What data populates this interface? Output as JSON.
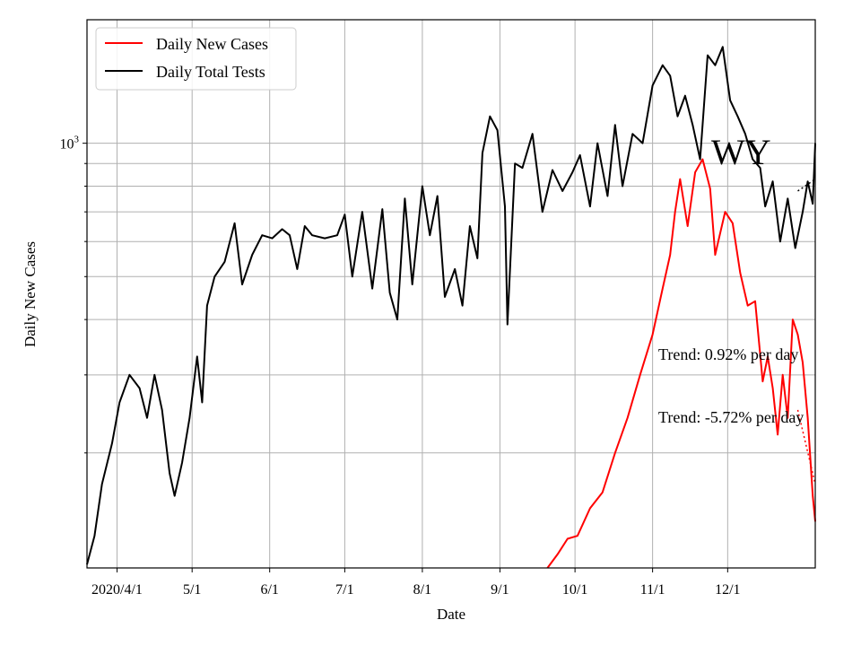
{
  "chart_data": {
    "type": "line",
    "state_label": "WY",
    "xlabel": "Date",
    "ylabel": "Daily New Cases",
    "x_range": [
      "2020-03-20",
      "2021-01-05"
    ],
    "y_scale": "log",
    "y_range": [
      110,
      1900
    ],
    "y_tick_labels": [
      {
        "value": 1000,
        "base": "10",
        "exp": "3"
      }
    ],
    "y_minor_ticks": [
      200,
      300,
      400,
      500,
      600,
      700,
      800,
      900
    ],
    "x_ticks": [
      {
        "date": "2020-04-01",
        "label": "2020/4/1"
      },
      {
        "date": "2020-05-01",
        "label": "5/1"
      },
      {
        "date": "2020-06-01",
        "label": "6/1"
      },
      {
        "date": "2020-07-01",
        "label": "7/1"
      },
      {
        "date": "2020-08-01",
        "label": "8/1"
      },
      {
        "date": "2020-09-01",
        "label": "9/1"
      },
      {
        "date": "2020-10-01",
        "label": "10/1"
      },
      {
        "date": "2020-11-01",
        "label": "11/1"
      },
      {
        "date": "2020-12-01",
        "label": "12/1"
      }
    ],
    "grid": true,
    "legend_position": "top-left",
    "series": [
      {
        "name": "Daily New Cases",
        "color": "#ff0000",
        "points": [
          [
            "2020-09-20",
            110
          ],
          [
            "2020-09-24",
            118
          ],
          [
            "2020-09-28",
            128
          ],
          [
            "2020-10-02",
            130
          ],
          [
            "2020-10-07",
            150
          ],
          [
            "2020-10-12",
            163
          ],
          [
            "2020-10-17",
            200
          ],
          [
            "2020-10-22",
            240
          ],
          [
            "2020-10-27",
            300
          ],
          [
            "2020-11-01",
            370
          ],
          [
            "2020-11-05",
            470
          ],
          [
            "2020-11-08",
            560
          ],
          [
            "2020-11-10",
            700
          ],
          [
            "2020-11-12",
            830
          ],
          [
            "2020-11-15",
            650
          ],
          [
            "2020-11-18",
            860
          ],
          [
            "2020-11-21",
            920
          ],
          [
            "2020-11-24",
            790
          ],
          [
            "2020-11-26",
            560
          ],
          [
            "2020-11-30",
            700
          ],
          [
            "2020-12-03",
            660
          ],
          [
            "2020-12-06",
            510
          ],
          [
            "2020-12-09",
            430
          ],
          [
            "2020-12-12",
            440
          ],
          [
            "2020-12-15",
            290
          ],
          [
            "2020-12-17",
            330
          ],
          [
            "2020-12-19",
            280
          ],
          [
            "2020-12-21",
            220
          ],
          [
            "2020-12-23",
            300
          ],
          [
            "2020-12-25",
            240
          ],
          [
            "2020-12-27",
            400
          ],
          [
            "2020-12-29",
            370
          ],
          [
            "2020-12-31",
            320
          ],
          [
            "2021-01-02",
            240
          ],
          [
            "2021-01-04",
            160
          ],
          [
            "2021-01-05",
            140
          ]
        ]
      },
      {
        "name": "Daily Total Tests",
        "color": "#000000",
        "points": [
          [
            "2020-03-20",
            112
          ],
          [
            "2020-03-23",
            130
          ],
          [
            "2020-03-26",
            170
          ],
          [
            "2020-03-30",
            210
          ],
          [
            "2020-04-02",
            260
          ],
          [
            "2020-04-06",
            300
          ],
          [
            "2020-04-10",
            280
          ],
          [
            "2020-04-13",
            240
          ],
          [
            "2020-04-16",
            300
          ],
          [
            "2020-04-19",
            250
          ],
          [
            "2020-04-22",
            180
          ],
          [
            "2020-04-24",
            160
          ],
          [
            "2020-04-27",
            190
          ],
          [
            "2020-04-30",
            240
          ],
          [
            "2020-05-03",
            330
          ],
          [
            "2020-05-05",
            260
          ],
          [
            "2020-05-07",
            430
          ],
          [
            "2020-05-10",
            500
          ],
          [
            "2020-05-14",
            540
          ],
          [
            "2020-05-18",
            660
          ],
          [
            "2020-05-21",
            480
          ],
          [
            "2020-05-25",
            560
          ],
          [
            "2020-05-29",
            620
          ],
          [
            "2020-06-02",
            610
          ],
          [
            "2020-06-06",
            640
          ],
          [
            "2020-06-09",
            620
          ],
          [
            "2020-06-12",
            520
          ],
          [
            "2020-06-15",
            650
          ],
          [
            "2020-06-18",
            620
          ],
          [
            "2020-06-23",
            610
          ],
          [
            "2020-06-28",
            620
          ],
          [
            "2020-07-01",
            690
          ],
          [
            "2020-07-04",
            500
          ],
          [
            "2020-07-08",
            700
          ],
          [
            "2020-07-12",
            470
          ],
          [
            "2020-07-16",
            710
          ],
          [
            "2020-07-19",
            460
          ],
          [
            "2020-07-22",
            400
          ],
          [
            "2020-07-25",
            750
          ],
          [
            "2020-07-28",
            480
          ],
          [
            "2020-08-01",
            800
          ],
          [
            "2020-08-04",
            620
          ],
          [
            "2020-08-07",
            760
          ],
          [
            "2020-08-10",
            450
          ],
          [
            "2020-08-14",
            520
          ],
          [
            "2020-08-17",
            430
          ],
          [
            "2020-08-20",
            650
          ],
          [
            "2020-08-23",
            550
          ],
          [
            "2020-08-25",
            950
          ],
          [
            "2020-08-28",
            1150
          ],
          [
            "2020-08-31",
            1070
          ],
          [
            "2020-09-03",
            720
          ],
          [
            "2020-09-04",
            390
          ],
          [
            "2020-09-07",
            900
          ],
          [
            "2020-09-10",
            880
          ],
          [
            "2020-09-14",
            1050
          ],
          [
            "2020-09-18",
            700
          ],
          [
            "2020-09-22",
            870
          ],
          [
            "2020-09-26",
            780
          ],
          [
            "2020-09-30",
            860
          ],
          [
            "2020-10-03",
            940
          ],
          [
            "2020-10-07",
            720
          ],
          [
            "2020-10-10",
            1000
          ],
          [
            "2020-10-14",
            760
          ],
          [
            "2020-10-17",
            1100
          ],
          [
            "2020-10-20",
            800
          ],
          [
            "2020-10-24",
            1050
          ],
          [
            "2020-10-28",
            1000
          ],
          [
            "2020-11-01",
            1350
          ],
          [
            "2020-11-05",
            1500
          ],
          [
            "2020-11-08",
            1420
          ],
          [
            "2020-11-11",
            1150
          ],
          [
            "2020-11-14",
            1280
          ],
          [
            "2020-11-17",
            1100
          ],
          [
            "2020-11-20",
            920
          ],
          [
            "2020-11-23",
            1580
          ],
          [
            "2020-11-26",
            1500
          ],
          [
            "2020-11-29",
            1650
          ],
          [
            "2020-12-02",
            1250
          ],
          [
            "2020-12-05",
            1150
          ],
          [
            "2020-12-08",
            1050
          ],
          [
            "2020-12-11",
            920
          ],
          [
            "2020-12-14",
            880
          ],
          [
            "2020-12-16",
            720
          ],
          [
            "2020-12-19",
            820
          ],
          [
            "2020-12-22",
            600
          ],
          [
            "2020-12-25",
            750
          ],
          [
            "2020-12-28",
            580
          ],
          [
            "2020-12-31",
            700
          ],
          [
            "2021-01-02",
            820
          ],
          [
            "2021-01-04",
            730
          ],
          [
            "2021-01-05",
            1000
          ]
        ]
      }
    ],
    "trend_lines": [
      {
        "color": "#000000",
        "points": [
          [
            "2020-12-29",
            780
          ],
          [
            "2021-01-05",
            830
          ]
        ]
      },
      {
        "color": "#ff0000",
        "points": [
          [
            "2020-12-29",
            250
          ],
          [
            "2021-01-05",
            170
          ]
        ]
      }
    ],
    "annotations": [
      "Trend: 0.92% per day",
      "Trend: -5.72% per day"
    ]
  }
}
